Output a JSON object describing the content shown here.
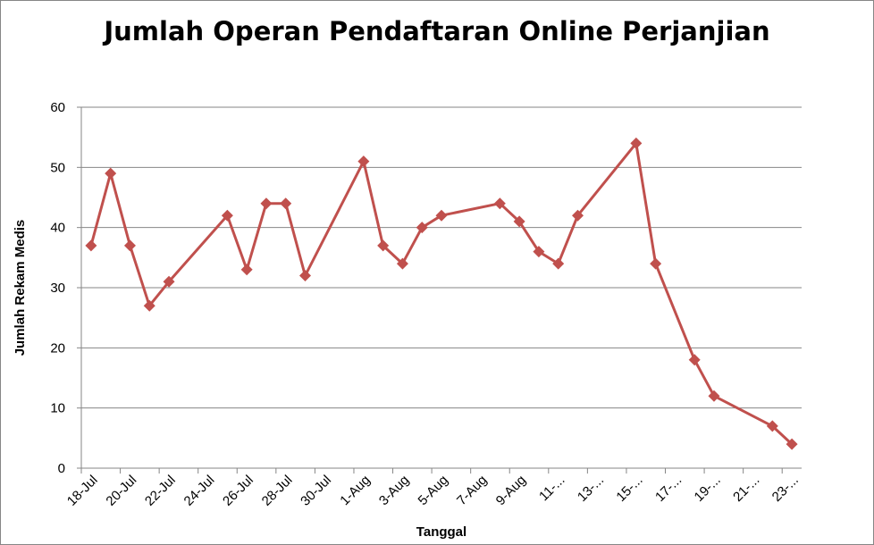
{
  "chart_data": {
    "type": "line",
    "title": "Jumlah Operan Pendaftaran Online Perjanjian",
    "xlabel": "Tanggal",
    "ylabel": "Jumlah Rekam Medis",
    "ylim": [
      0,
      60
    ],
    "yticks": [
      0,
      10,
      20,
      30,
      40,
      50,
      60
    ],
    "xlim_days": "18-Jul to 23-Aug",
    "grid": "horizontal",
    "legend": "none",
    "line_color": "#C0504D",
    "x_tick_labels": [
      "18-Jul",
      "20-Jul",
      "22-Jul",
      "24-Jul",
      "26-Jul",
      "28-Jul",
      "30-Jul",
      "1-Aug",
      "3-Aug",
      "5-Aug",
      "7-Aug",
      "9-Aug",
      "11-...",
      "13-...",
      "15-...",
      "17-...",
      "19-...",
      "21-...",
      "23-..."
    ],
    "series": [
      {
        "x": [
          "18-Jul",
          "19-Jul",
          "20-Jul",
          "21-Jul",
          "22-Jul",
          "25-Jul",
          "26-Jul",
          "27-Jul",
          "28-Jul",
          "29-Jul",
          "1-Aug",
          "2-Aug",
          "3-Aug",
          "4-Aug",
          "5-Aug",
          "8-Aug",
          "9-Aug",
          "10-Aug",
          "11-Aug",
          "12-Aug",
          "15-Aug",
          "16-Aug",
          "18-Aug",
          "19-Aug",
          "22-Aug",
          "23-Aug"
        ],
        "values": [
          37,
          49,
          37,
          27,
          31,
          42,
          33,
          44,
          44,
          32,
          51,
          37,
          34,
          40,
          42,
          44,
          41,
          36,
          34,
          42,
          54,
          34,
          18,
          12,
          7,
          4
        ]
      }
    ]
  }
}
